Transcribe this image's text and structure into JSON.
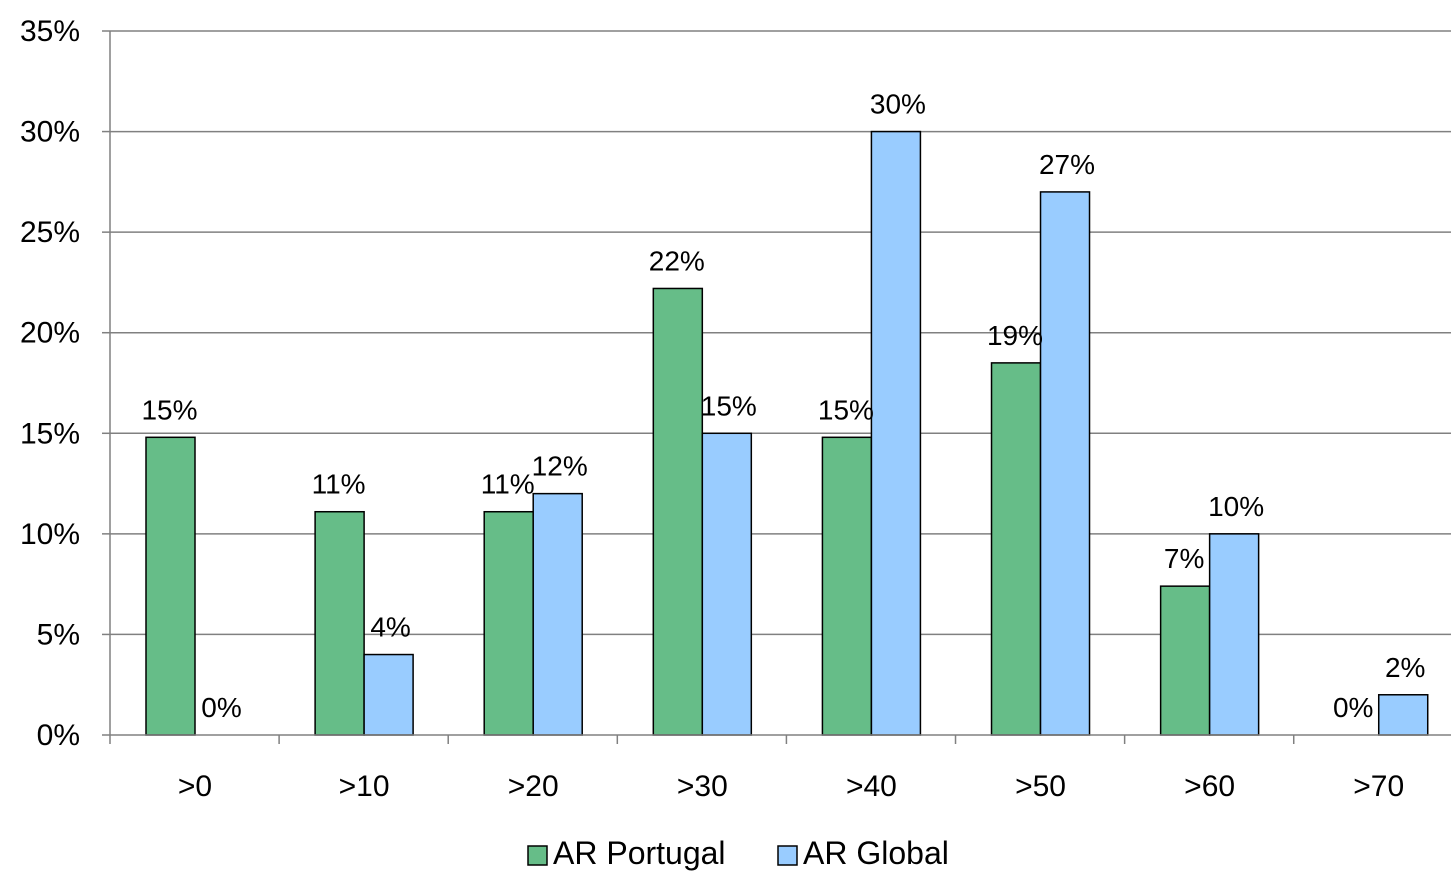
{
  "chart_data": {
    "type": "bar",
    "title": "",
    "xlabel": "",
    "ylabel": "",
    "categories": [
      ">0",
      ">10",
      ">20",
      ">30",
      ">40",
      ">50",
      ">60",
      ">70"
    ],
    "ylim": [
      0,
      35
    ],
    "y_ticks": [
      0,
      5,
      10,
      15,
      20,
      25,
      30,
      35
    ],
    "y_tick_labels": [
      "0%",
      "5%",
      "10%",
      "15%",
      "20%",
      "25%",
      "30%",
      "35%"
    ],
    "grid": true,
    "legend_position": "bottom",
    "series": [
      {
        "name": "AR Portugal",
        "color": "#66bd88",
        "values": [
          14.8,
          11.1,
          11.1,
          22.2,
          14.8,
          18.5,
          7.4,
          0
        ],
        "labels": [
          "15%",
          "11%",
          "11%",
          "22%",
          "15%",
          "19%",
          "7%",
          "0%"
        ]
      },
      {
        "name": "AR Global",
        "color": "#99ccff",
        "values": [
          0,
          4,
          12,
          15,
          30,
          27,
          10,
          2
        ],
        "labels": [
          "0%",
          "4%",
          "12%",
          "15%",
          "30%",
          "27%",
          "10%",
          "2%"
        ]
      }
    ]
  }
}
